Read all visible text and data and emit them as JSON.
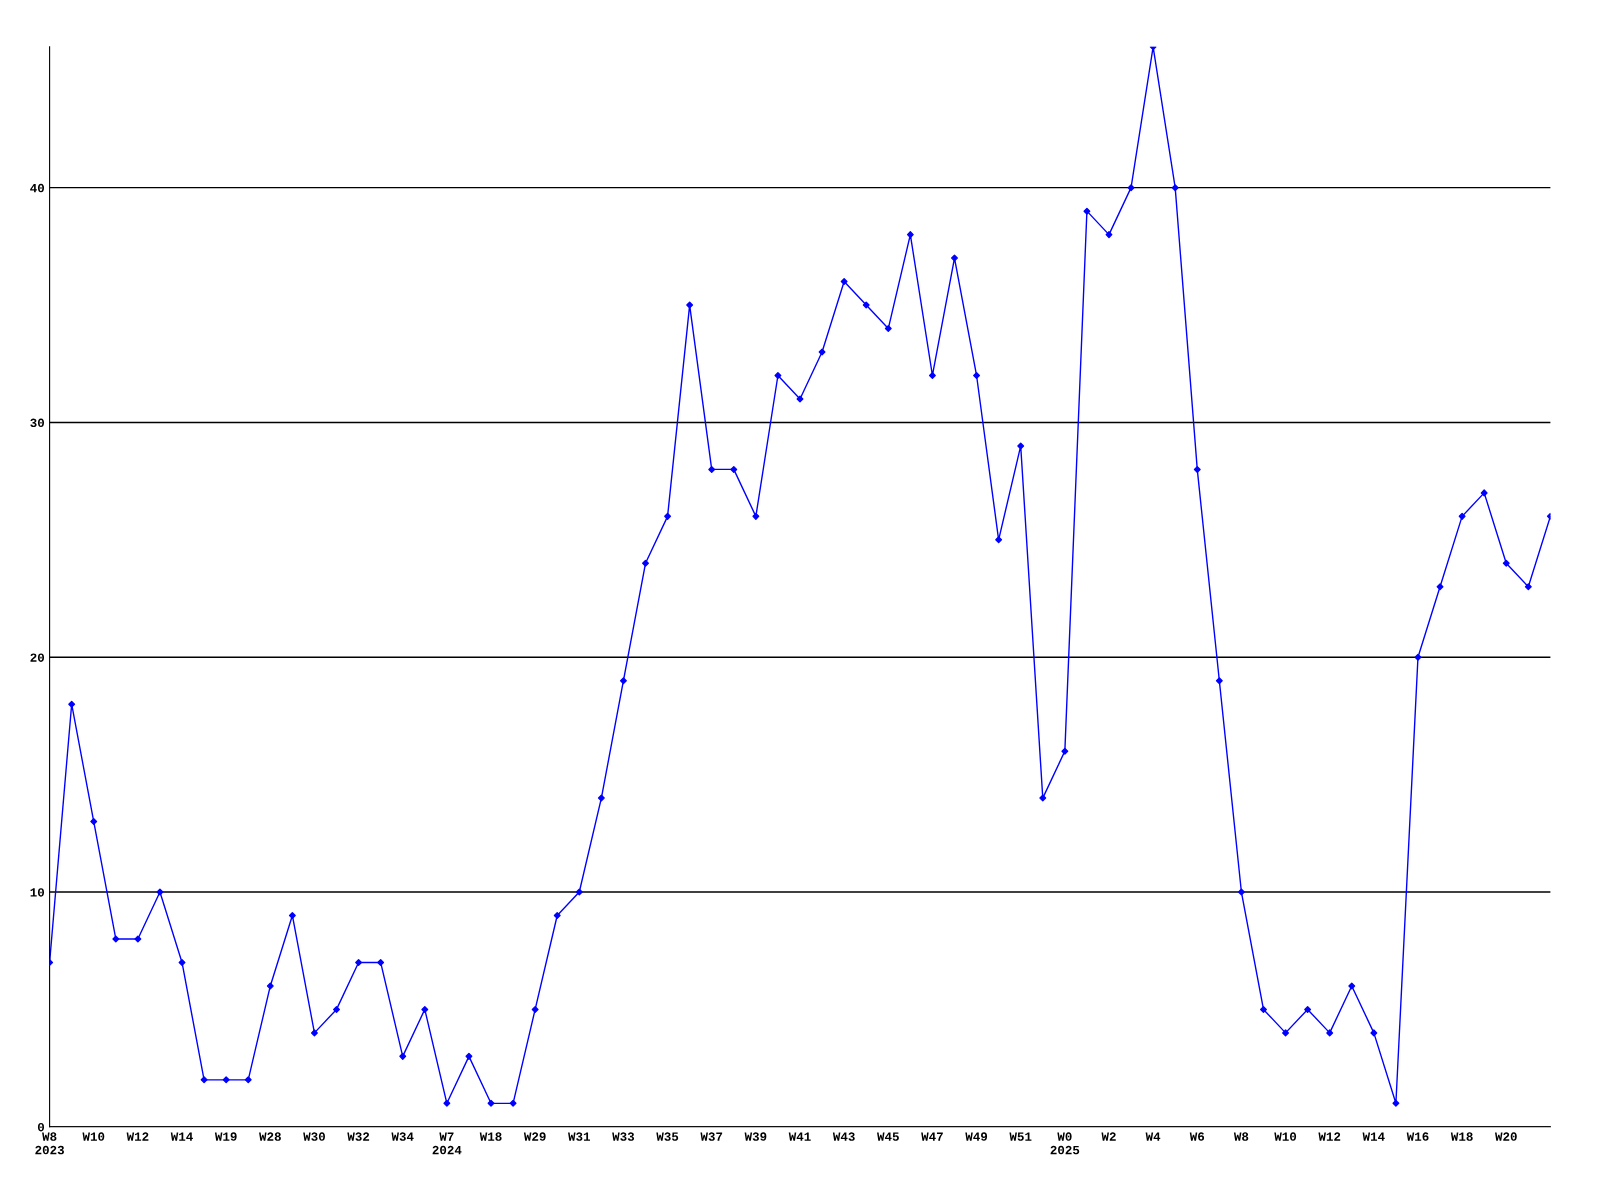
{
  "chart_data": {
    "type": "line",
    "categories": [
      "W8\n2023",
      null,
      "W10",
      null,
      "W12",
      null,
      "W14",
      null,
      "W19",
      null,
      "W28",
      null,
      "W30",
      null,
      "W32",
      null,
      "W34",
      null,
      "W7\n2024",
      null,
      "W18",
      null,
      "W29",
      null,
      "W31",
      null,
      "W33",
      null,
      "W35",
      null,
      "W37",
      null,
      "W39",
      null,
      "W41",
      null,
      "W43",
      null,
      "W45",
      null,
      "W47",
      null,
      "W49",
      null,
      "W51",
      null,
      "W0\n2025",
      null,
      "W2",
      null,
      "W4",
      null,
      "W6",
      null,
      "W8",
      null,
      "W10",
      null,
      "W12",
      null,
      "W14",
      null,
      "W16",
      null,
      "W18",
      null,
      "W20",
      null,
      null
    ],
    "series": [
      {
        "color": "#0000ff",
        "values": [
          7,
          18,
          13,
          8,
          8,
          10,
          7,
          2,
          2,
          2,
          6,
          9,
          4,
          5,
          7,
          7,
          3,
          5,
          1,
          3,
          1,
          1,
          5,
          9,
          10,
          14,
          19,
          24,
          26,
          35,
          28,
          28,
          26,
          32,
          31,
          33,
          36,
          35,
          34,
          38,
          32,
          37,
          32,
          25,
          29,
          14,
          16,
          39,
          38,
          40,
          46,
          40,
          28,
          19,
          10,
          5,
          4,
          5,
          4,
          6,
          4,
          1,
          20,
          23,
          26,
          27,
          24,
          23,
          26
        ]
      }
    ],
    "ylim": [
      0,
      46
    ],
    "yticks": [
      0,
      10,
      20,
      30,
      40
    ],
    "grid": "y",
    "marker": "diamond",
    "line_style": "solid"
  }
}
